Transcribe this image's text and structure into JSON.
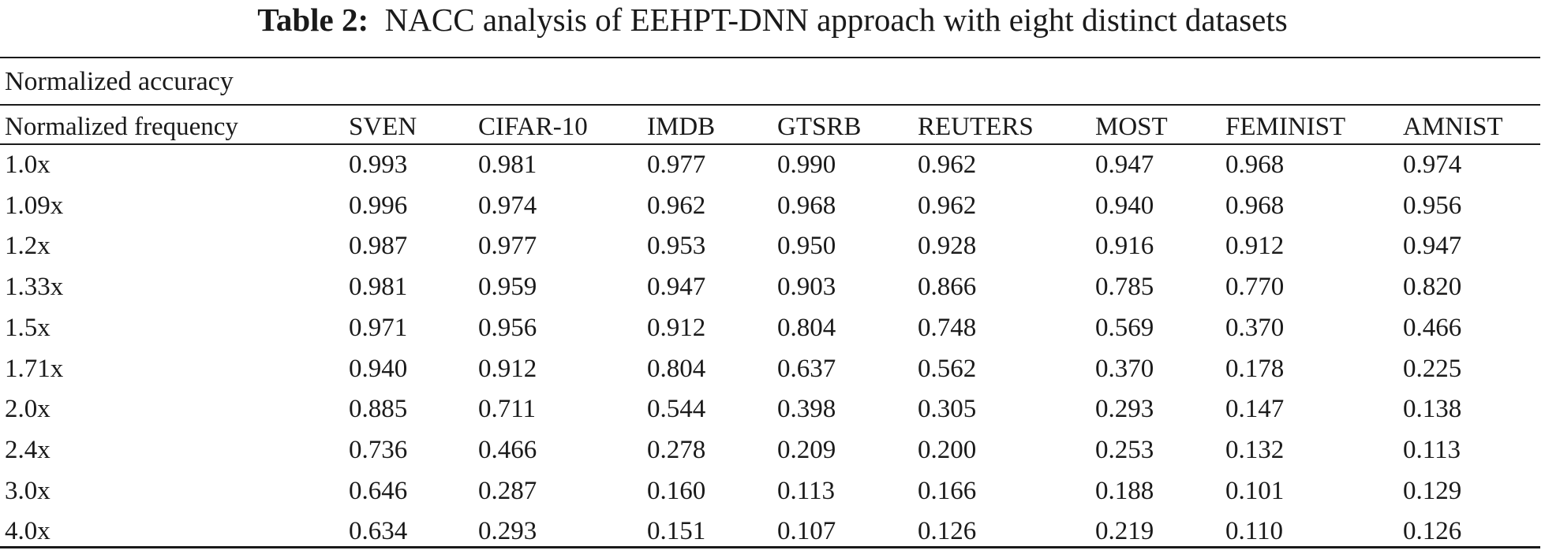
{
  "caption": {
    "label": "Table 2:",
    "text": "NACC analysis of EEHPT-DNN approach with eight distinct datasets"
  },
  "table": {
    "group_header": "Normalized accuracy",
    "columns": [
      "Normalized frequency",
      "SVEN",
      "CIFAR-10",
      "IMDB",
      "GTSRB",
      "REUTERS",
      "MOST",
      "FEMINIST",
      "AMNIST"
    ],
    "rows": [
      [
        "1.0x",
        "0.993",
        "0.981",
        "0.977",
        "0.990",
        "0.962",
        "0.947",
        "0.968",
        "0.974"
      ],
      [
        "1.09x",
        "0.996",
        "0.974",
        "0.962",
        "0.968",
        "0.962",
        "0.940",
        "0.968",
        "0.956"
      ],
      [
        "1.2x",
        "0.987",
        "0.977",
        "0.953",
        "0.950",
        "0.928",
        "0.916",
        "0.912",
        "0.947"
      ],
      [
        "1.33x",
        "0.981",
        "0.959",
        "0.947",
        "0.903",
        "0.866",
        "0.785",
        "0.770",
        "0.820"
      ],
      [
        "1.5x",
        "0.971",
        "0.956",
        "0.912",
        "0.804",
        "0.748",
        "0.569",
        "0.370",
        "0.466"
      ],
      [
        "1.71x",
        "0.940",
        "0.912",
        "0.804",
        "0.637",
        "0.562",
        "0.370",
        "0.178",
        "0.225"
      ],
      [
        "2.0x",
        "0.885",
        "0.711",
        "0.544",
        "0.398",
        "0.305",
        "0.293",
        "0.147",
        "0.138"
      ],
      [
        "2.4x",
        "0.736",
        "0.466",
        "0.278",
        "0.209",
        "0.200",
        "0.253",
        "0.132",
        "0.113"
      ],
      [
        "3.0x",
        "0.646",
        "0.287",
        "0.160",
        "0.113",
        "0.166",
        "0.188",
        "0.101",
        "0.129"
      ],
      [
        "4.0x",
        "0.634",
        "0.293",
        "0.151",
        "0.107",
        "0.126",
        "0.219",
        "0.110",
        "0.126"
      ]
    ]
  }
}
